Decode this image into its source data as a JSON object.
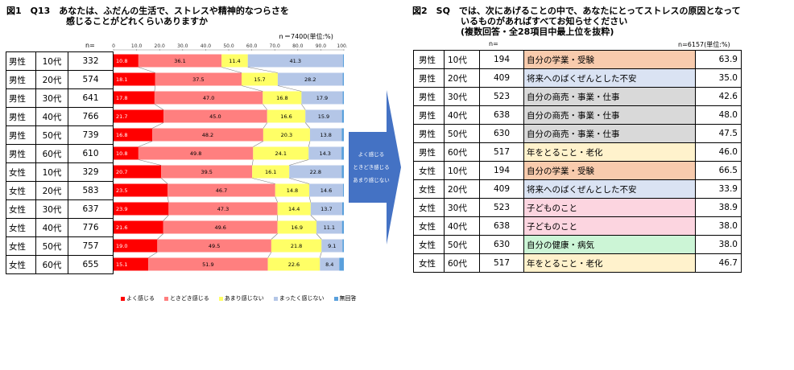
{
  "fig1": {
    "title_line1": "図1　Q13　あなたは、ふだんの生活で、ストレスや精神的なつらさを",
    "title_line2": "感じることがどれくらいありますか",
    "n_note": "ｎ＝7400(単位:%)",
    "n_header": "n=",
    "rows": [
      {
        "gender": "男性",
        "age": "10代",
        "n": "332"
      },
      {
        "gender": "男性",
        "age": "20代",
        "n": "574"
      },
      {
        "gender": "男性",
        "age": "30代",
        "n": "641"
      },
      {
        "gender": "男性",
        "age": "40代",
        "n": "766"
      },
      {
        "gender": "男性",
        "age": "50代",
        "n": "739"
      },
      {
        "gender": "男性",
        "age": "60代",
        "n": "610"
      },
      {
        "gender": "女性",
        "age": "10代",
        "n": "329"
      },
      {
        "gender": "女性",
        "age": "20代",
        "n": "583"
      },
      {
        "gender": "女性",
        "age": "30代",
        "n": "637"
      },
      {
        "gender": "女性",
        "age": "40代",
        "n": "776"
      },
      {
        "gender": "女性",
        "age": "50代",
        "n": "757"
      },
      {
        "gender": "女性",
        "age": "60代",
        "n": "655"
      }
    ]
  },
  "chart_data": {
    "type": "bar",
    "stacked": true,
    "orientation": "horizontal",
    "xlim": [
      0,
      100
    ],
    "ticks": [
      "0",
      "10.0",
      "20.0",
      "30.0",
      "40.0",
      "50.0",
      "60.0",
      "70.0",
      "80.0",
      "90.0",
      "100.0"
    ],
    "categories": [
      "男性 10代",
      "男性 20代",
      "男性 30代",
      "男性 40代",
      "男性 50代",
      "男性 60代",
      "女性 10代",
      "女性 20代",
      "女性 30代",
      "女性 40代",
      "女性 50代",
      "女性 60代"
    ],
    "series": [
      {
        "name": "よく感じる",
        "color": "#ff0000",
        "values": [
          10.8,
          18.1,
          17.8,
          21.7,
          16.8,
          10.8,
          20.7,
          23.5,
          23.9,
          21.6,
          19.0,
          15.1
        ]
      },
      {
        "name": "ときどき感じる",
        "color": "#ff7f7f",
        "values": [
          36.1,
          37.5,
          47.0,
          45.0,
          48.2,
          49.8,
          39.5,
          46.7,
          47.3,
          49.6,
          49.5,
          51.9
        ]
      },
      {
        "name": "あまり感じない",
        "color": "#ffff66",
        "values": [
          11.4,
          15.7,
          16.8,
          16.6,
          20.3,
          24.1,
          16.1,
          14.8,
          14.4,
          16.9,
          21.8,
          22.6
        ]
      },
      {
        "name": "まったく感じない",
        "color": "#b4c6e7",
        "values": [
          41.3,
          28.2,
          17.9,
          15.9,
          13.8,
          14.3,
          22.8,
          14.6,
          13.7,
          11.1,
          9.1,
          8.4
        ]
      },
      {
        "name": "無回答",
        "color": "#5aa0dc",
        "values": [
          0.4,
          0.5,
          0.5,
          0.8,
          0.9,
          1.0,
          0.9,
          0.4,
          0.7,
          0.8,
          0.6,
          2.0
        ]
      }
    ]
  },
  "arrow": {
    "line1": "よく感じる",
    "line2": "ときどき感じる",
    "line3": "あまり感じない",
    "color": "#4472c4"
  },
  "fig2": {
    "title_line1": "図2　SQ　では、次にあげることの中で、あなたにとってストレスの原因となって",
    "title_line2": "いるものがあればすべてお知らせください",
    "title_line3": "(複数回答・全28項目中最上位を抜粋)",
    "n_note": "n=6157(単位:%)",
    "n_header": "n=",
    "rows": [
      {
        "gender": "男性",
        "age": "10代",
        "n": "194",
        "cause": "自分の学業・受験",
        "value": "63.9",
        "color": "#f8cbad"
      },
      {
        "gender": "男性",
        "age": "20代",
        "n": "409",
        "cause": "将来へのばくぜんとした不安",
        "value": "35.0",
        "color": "#dae3f3"
      },
      {
        "gender": "男性",
        "age": "30代",
        "n": "523",
        "cause": "自分の商売・事業・仕事",
        "value": "42.6",
        "color": "#d9d9d9"
      },
      {
        "gender": "男性",
        "age": "40代",
        "n": "638",
        "cause": "自分の商売・事業・仕事",
        "value": "48.0",
        "color": "#d9d9d9"
      },
      {
        "gender": "男性",
        "age": "50代",
        "n": "630",
        "cause": "自分の商売・事業・仕事",
        "value": "47.5",
        "color": "#d9d9d9"
      },
      {
        "gender": "男性",
        "age": "60代",
        "n": "517",
        "cause": "年をとること・老化",
        "value": "46.0",
        "color": "#fff2cc"
      },
      {
        "gender": "女性",
        "age": "10代",
        "n": "194",
        "cause": "自分の学業・受験",
        "value": "66.5",
        "color": "#f8cbad"
      },
      {
        "gender": "女性",
        "age": "20代",
        "n": "409",
        "cause": "将来へのばくぜんとした不安",
        "value": "33.9",
        "color": "#dae3f3"
      },
      {
        "gender": "女性",
        "age": "30代",
        "n": "523",
        "cause": "子どものこと",
        "value": "38.9",
        "color": "#fcd5e0"
      },
      {
        "gender": "女性",
        "age": "40代",
        "n": "638",
        "cause": "子どものこと",
        "value": "38.0",
        "color": "#fcd5e0"
      },
      {
        "gender": "女性",
        "age": "50代",
        "n": "630",
        "cause": "自分の健康・病気",
        "value": "38.0",
        "color": "#ccf5d6"
      },
      {
        "gender": "女性",
        "age": "60代",
        "n": "517",
        "cause": "年をとること・老化",
        "value": "46.7",
        "color": "#fff2cc"
      }
    ]
  }
}
